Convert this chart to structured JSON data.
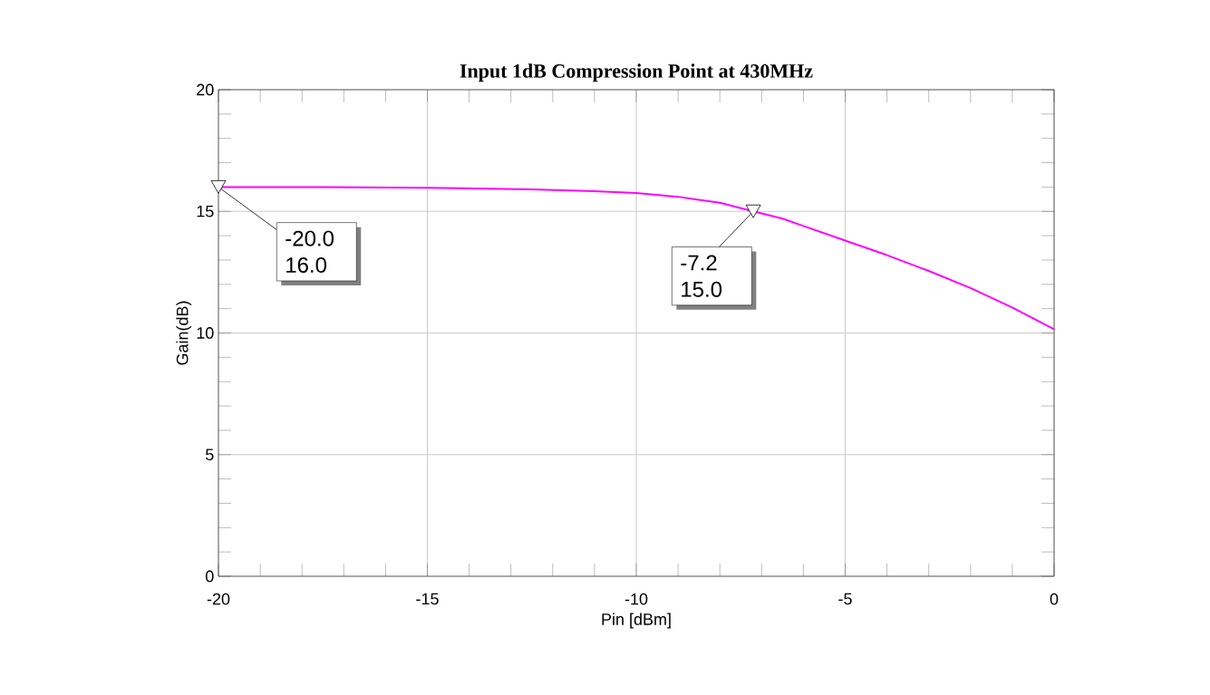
{
  "chart_data": {
    "type": "line",
    "title": "Input 1dB Compression Point at 430MHz",
    "xlabel": "Pin [dBm]",
    "ylabel": "Gain(dB)",
    "x": [
      -20,
      -17.5,
      -15,
      -12.5,
      -11,
      -10,
      -9,
      -8,
      -7.2,
      -6.5,
      -6,
      -5,
      -4,
      -3,
      -2,
      -1,
      0
    ],
    "series": [
      {
        "color": "#ff00ff",
        "values": [
          16.0,
          16.0,
          15.97,
          15.9,
          15.83,
          15.75,
          15.6,
          15.35,
          15.0,
          14.7,
          14.4,
          13.8,
          13.2,
          12.55,
          11.85,
          11.05,
          10.15
        ]
      }
    ],
    "xlim": [
      -20,
      0
    ],
    "xticks": [
      -20,
      -15,
      -10,
      -5,
      0
    ],
    "ylim": [
      0,
      20
    ],
    "yticks": [
      0,
      5,
      10,
      15,
      20
    ],
    "grid": true,
    "annotations": [
      {
        "text": "-20.0 16.0",
        "x": -20.0,
        "y": 16.0
      },
      {
        "text": "-7.2 15.0",
        "x": -7.2,
        "y": 15.0
      }
    ]
  }
}
